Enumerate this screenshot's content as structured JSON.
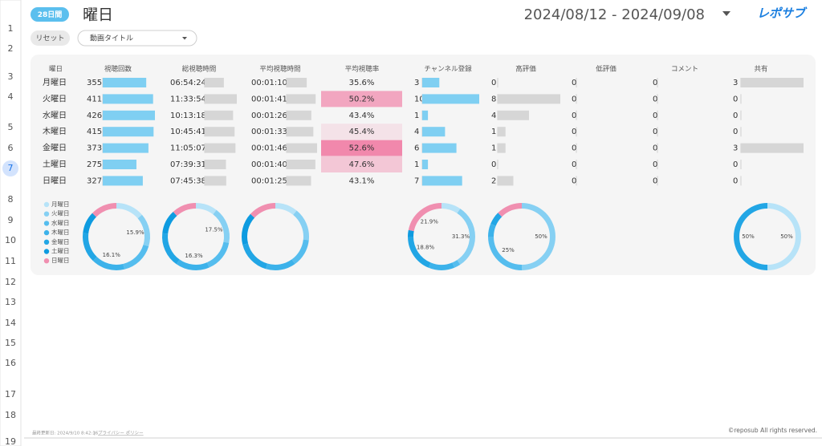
{
  "row_numbers": [
    1,
    2,
    3,
    4,
    5,
    6,
    7,
    8,
    9,
    10,
    11,
    12,
    13,
    14,
    15,
    16,
    17,
    18,
    19
  ],
  "header": {
    "period_badge": "28日間",
    "title": "曜日",
    "date_range": "2024/08/12 - 2024/09/08",
    "logo": "レポサブ"
  },
  "controls": {
    "reset": "リセット",
    "dropdown": "動画タイトル"
  },
  "table": {
    "columns": [
      "曜日",
      "視聴回数",
      "総視聴時間",
      "平均視聴時間",
      "平均視聴率",
      "チャンネル登録",
      "高評価",
      "低評価",
      "コメント",
      "共有"
    ],
    "days": [
      "月曜日",
      "火曜日",
      "水曜日",
      "木曜日",
      "金曜日",
      "土曜日",
      "日曜日"
    ],
    "day_colors": [
      "#b7e3f8",
      "#86d0f3",
      "#55bdee",
      "#3cb2ea",
      "#22a6e5",
      "#0e9be0",
      "#f08fb0"
    ],
    "views": [
      355,
      411,
      426,
      415,
      373,
      275,
      327
    ],
    "total_time": [
      "06:54:24",
      "11:33:54",
      "10:13:18",
      "10:45:41",
      "11:05:07",
      "07:39:31",
      "07:45:38"
    ],
    "avg_time": [
      "00:01:10",
      "00:01:41",
      "00:01:26",
      "00:01:33",
      "00:01:46",
      "00:01:40",
      "00:01:25"
    ],
    "avg_rate": [
      35.6,
      50.2,
      43.4,
      45.4,
      52.6,
      47.6,
      43.1
    ],
    "avg_rate_labels": [
      "35.6%",
      "50.2%",
      "43.4%",
      "45.4%",
      "52.6%",
      "47.6%",
      "43.1%"
    ],
    "subscribers": [
      3,
      10,
      1,
      4,
      6,
      1,
      7
    ],
    "likes": [
      0,
      8,
      4,
      1,
      1,
      0,
      2
    ],
    "dislikes": [
      0,
      0,
      0,
      0,
      0,
      0,
      0
    ],
    "comments": [
      0,
      0,
      0,
      0,
      0,
      0,
      0
    ],
    "shares": [
      3,
      0,
      0,
      0,
      3,
      0,
      0
    ]
  },
  "donut_labels": {
    "views": [
      null,
      "15.9%",
      null,
      "16.1%",
      null,
      null,
      null
    ],
    "total_time": [
      null,
      "17.5%",
      null,
      "16.3%",
      null,
      null,
      null
    ],
    "avg_time": [
      null,
      null,
      null,
      null,
      null,
      null,
      null
    ],
    "subscribers": [
      null,
      "31.3%",
      null,
      null,
      "18.8%",
      null,
      "21.9%"
    ],
    "likes": [
      null,
      "50%",
      "25%",
      null,
      null,
      null,
      null
    ],
    "shares": [
      "50%",
      null,
      null,
      null,
      "50%",
      null,
      null
    ]
  },
  "footer": {
    "updated": "最終更新日: 2024/9/10 8:42:16",
    "privacy": "プライバシー ポリシー",
    "copyright": "©reposub All rights reserved."
  }
}
